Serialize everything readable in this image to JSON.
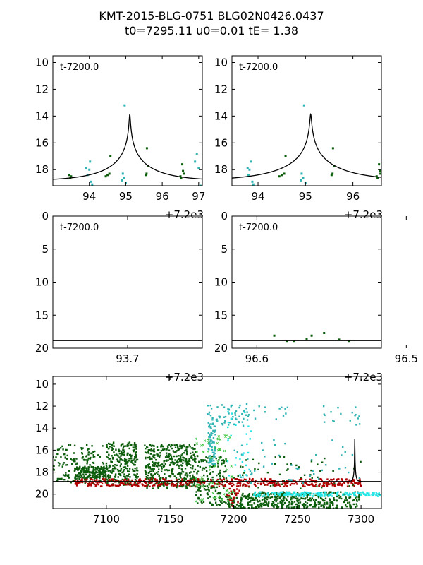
{
  "title": {
    "line1": "KMT-2015-BLG-0751 BLG02N0426.0437",
    "line2": "t0=7295.11 u0=0.01 tE=   1.38"
  },
  "colors": {
    "model": "#000000",
    "dark_green": "#0b5c0b",
    "teal": "#2fb3b3",
    "cyan": "#22e5e5",
    "red": "#b00000",
    "green_x": "#39c439"
  },
  "chart_data": [
    {
      "id": "top-left",
      "type": "scatter",
      "inset_label": "t-7200.0",
      "offset_label": "+7.2e3",
      "xlim": [
        93.0,
        97.1
      ],
      "ylim": [
        19.2,
        9.5
      ],
      "xticks": [
        "94",
        "95",
        "96",
        "97"
      ],
      "xtick_values": [
        94,
        95,
        96,
        97
      ],
      "yticks": [
        "10",
        "12",
        "14",
        "16",
        "18"
      ],
      "ytick_values": [
        10,
        12,
        14,
        16,
        18
      ],
      "model": {
        "t0": 95.11,
        "tE": 1.38,
        "u0": 0.01,
        "base": 18.85
      },
      "series": [
        {
          "color": "dark_green",
          "points": [
            [
              93.45,
              18.4
            ],
            [
              93.48,
              18.6
            ],
            [
              93.5,
              18.5
            ],
            [
              94.45,
              18.5
            ],
            [
              94.5,
              18.4
            ],
            [
              94.55,
              18.3
            ],
            [
              94.58,
              17.0
            ],
            [
              95.55,
              18.4
            ],
            [
              95.57,
              18.3
            ],
            [
              95.58,
              16.4
            ],
            [
              95.6,
              17.7
            ],
            [
              96.5,
              18.5
            ],
            [
              96.52,
              18.6
            ],
            [
              96.55,
              17.6
            ],
            [
              96.57,
              18.1
            ],
            [
              96.6,
              18.3
            ]
          ]
        },
        {
          "color": "teal",
          "points": [
            [
              93.9,
              17.9
            ],
            [
              93.95,
              18.4
            ],
            [
              94.0,
              18.0
            ],
            [
              94.02,
              17.4
            ],
            [
              94.05,
              18.9
            ],
            [
              94.08,
              19.1
            ],
            [
              94.9,
              18.8
            ],
            [
              94.92,
              18.3
            ],
            [
              94.95,
              18.6
            ],
            [
              94.97,
              13.2
            ],
            [
              95.0,
              19.0
            ],
            [
              96.9,
              17.4
            ],
            [
              96.95,
              16.8
            ],
            [
              97.0,
              17.9
            ],
            [
              97.05,
              19.2
            ]
          ]
        }
      ]
    },
    {
      "id": "top-right",
      "type": "scatter",
      "inset_label": "t-7200.0",
      "offset_label": "+7.2e3",
      "xlim": [
        93.45,
        96.6
      ],
      "ylim": [
        19.2,
        9.5
      ],
      "xticks": [
        "94",
        "95",
        "96"
      ],
      "xtick_values": [
        94,
        95,
        96
      ],
      "yticks": [
        "10",
        "12",
        "14",
        "16",
        "18"
      ],
      "ytick_values": [
        10,
        12,
        14,
        16,
        18
      ],
      "model": {
        "t0": 95.11,
        "tE": 1.38,
        "u0": 0.01,
        "base": 18.85
      },
      "series": [
        {
          "color": "dark_green",
          "points": [
            [
              94.45,
              18.5
            ],
            [
              94.5,
              18.4
            ],
            [
              94.55,
              18.3
            ],
            [
              94.58,
              17.0
            ],
            [
              95.55,
              18.4
            ],
            [
              95.57,
              18.3
            ],
            [
              95.58,
              16.4
            ],
            [
              95.6,
              17.7
            ],
            [
              96.5,
              18.5
            ],
            [
              96.52,
              18.6
            ],
            [
              96.55,
              17.6
            ],
            [
              96.57,
              18.1
            ],
            [
              96.58,
              18.3
            ]
          ]
        },
        {
          "color": "teal",
          "points": [
            [
              93.78,
              17.9
            ],
            [
              93.8,
              18.4
            ],
            [
              93.82,
              18.0
            ],
            [
              93.85,
              17.4
            ],
            [
              93.88,
              18.9
            ],
            [
              93.9,
              19.1
            ],
            [
              94.9,
              18.8
            ],
            [
              94.92,
              18.3
            ],
            [
              94.95,
              18.6
            ],
            [
              94.97,
              13.2
            ],
            [
              95.0,
              19.0
            ]
          ]
        }
      ]
    },
    {
      "id": "mid-left",
      "type": "scatter",
      "inset_label": "t-7200.0",
      "offset_label": "+7.2e3",
      "xlim": [
        93.6,
        93.8
      ],
      "ylim": [
        20,
        0
      ],
      "xticks": [
        "93.7"
      ],
      "xtick_values": [
        93.7
      ],
      "yticks": [
        "0",
        "5",
        "10",
        "15",
        "20"
      ],
      "ytick_values": [
        0,
        5,
        10,
        15,
        20
      ],
      "model_flat": 18.85,
      "series": []
    },
    {
      "id": "mid-right",
      "type": "scatter",
      "inset_label": "t-7200.0",
      "offset_label": "+7.2e3",
      "xlim": [
        96.57,
        96.51
      ],
      "ylim": [
        20,
        0
      ],
      "xticks": [
        "96.6",
        "96.5"
      ],
      "xtick_values": [
        96.56,
        96.5
      ],
      "yticks": [
        "0",
        "5",
        "10",
        "15",
        "20"
      ],
      "ytick_values": [
        0,
        5,
        10,
        15,
        20
      ],
      "model_flat": 18.85,
      "series": [
        {
          "color": "dark_green",
          "points": [
            [
              96.553,
              18.1
            ],
            [
              96.548,
              18.9
            ],
            [
              96.545,
              18.9
            ],
            [
              96.54,
              18.6
            ],
            [
              96.538,
              18.1
            ],
            [
              96.533,
              17.7
            ],
            [
              96.527,
              18.7
            ],
            [
              96.523,
              18.9
            ]
          ]
        }
      ]
    },
    {
      "id": "bottom",
      "type": "scatter",
      "xlim": [
        7058,
        7316
      ],
      "ylim": [
        21.3,
        9.3
      ],
      "xticks": [
        "7100",
        "7150",
        "7200",
        "7250",
        "7300"
      ],
      "xtick_values": [
        7100,
        7150,
        7200,
        7250,
        7300
      ],
      "yticks": [
        "10",
        "12",
        "14",
        "16",
        "18",
        "20"
      ],
      "ytick_values": [
        10,
        12,
        14,
        16,
        18,
        20
      ],
      "model": {
        "t0": 7295.11,
        "tE": 1.38,
        "u0": 0.01,
        "base": 18.85
      },
      "clusters": [
        {
          "color": "dark_green",
          "x": [
            7058,
            7098
          ],
          "y": [
            15.5,
            19.0
          ],
          "n": 140
        },
        {
          "color": "dark_green",
          "x": [
            7075,
            7100
          ],
          "y": [
            17.5,
            18.6
          ],
          "n": 160
        },
        {
          "color": "dark_green",
          "x": [
            7100,
            7125
          ],
          "y": [
            15.3,
            19.3
          ],
          "n": 260
        },
        {
          "color": "dark_green",
          "x": [
            7130,
            7170
          ],
          "y": [
            15.5,
            19.5
          ],
          "n": 420
        },
        {
          "color": "dark_green",
          "x": [
            7170,
            7195
          ],
          "y": [
            16.5,
            21.0
          ],
          "n": 160
        },
        {
          "color": "dark_green",
          "x": [
            7195,
            7240
          ],
          "y": [
            19.8,
            21.3
          ],
          "n": 240
        },
        {
          "color": "dark_green",
          "x": [
            7240,
            7300
          ],
          "y": [
            19.8,
            21.3
          ],
          "n": 220
        },
        {
          "color": "dark_green",
          "x": [
            7200,
            7300
          ],
          "y": [
            16.5,
            19.5
          ],
          "n": 60
        },
        {
          "color": "red",
          "x": [
            7075,
            7300
          ],
          "y": [
            18.6,
            19.3
          ],
          "n": 480
        },
        {
          "color": "red",
          "x": [
            7195,
            7205
          ],
          "y": [
            19.0,
            21.2
          ],
          "n": 30
        },
        {
          "color": "teal",
          "x": [
            7180,
            7186
          ],
          "y": [
            13.5,
            17.5
          ],
          "n": 80
        },
        {
          "color": "teal",
          "x": [
            7179,
            7212
          ],
          "y": [
            11.8,
            13.8
          ],
          "n": 60
        },
        {
          "color": "teal",
          "x": [
            7215,
            7245
          ],
          "y": [
            12.0,
            13.3
          ],
          "n": 12
        },
        {
          "color": "teal",
          "x": [
            7270,
            7300
          ],
          "y": [
            12.0,
            13.8
          ],
          "n": 18
        },
        {
          "color": "teal",
          "x": [
            7200,
            7300
          ],
          "y": [
            15.0,
            19.0
          ],
          "n": 50
        },
        {
          "color": "cyan",
          "x": [
            7215,
            7316
          ],
          "y": [
            19.8,
            20.2
          ],
          "n": 160
        },
        {
          "color": "cyan",
          "x": [
            7195,
            7215
          ],
          "y": [
            11.5,
            18.5
          ],
          "n": 30
        },
        {
          "color": "green_x",
          "x": [
            7170,
            7200
          ],
          "y": [
            14.5,
            21.0
          ],
          "n": 70
        }
      ]
    }
  ]
}
